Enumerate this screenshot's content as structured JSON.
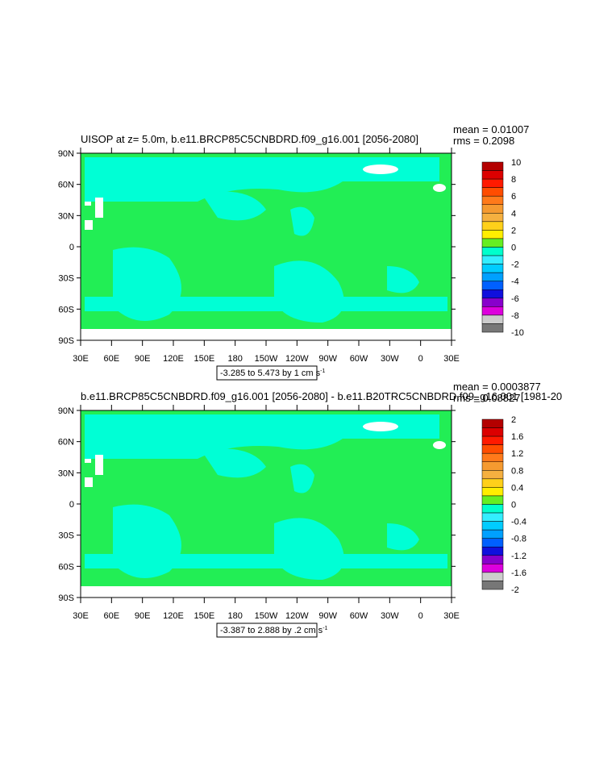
{
  "panels": [
    {
      "title": "UISOP at z=   5.0m, b.e11.BRCP85C5CNBDRD.f09_g16.001 [2056-2080]",
      "mean": "mean = 0.01007",
      "rms": "rms = 0.2098",
      "lat_labels": [
        "90N",
        "60N",
        "30N",
        "0",
        "30S",
        "60S",
        "90S"
      ],
      "lon_labels": [
        "30E",
        "60E",
        "90E",
        "120E",
        "150E",
        "180",
        "150W",
        "120W",
        "90W",
        "60W",
        "30W",
        "0",
        "30E"
      ],
      "info": "-3.285 to 5.473 by 1 cm s",
      "info_sup": "-1",
      "colorbar_labels": [
        "10",
        "8",
        "6",
        "4",
        "2",
        "0",
        "-2",
        "-4",
        "-6",
        "-8",
        "-10"
      ]
    },
    {
      "title": "b.e11.BRCP85C5CNBDRD.f09_g16.001 [2056-2080] - b.e11.B20TRC5CNBDRD.f09_g16.001 [1981-20",
      "mean": "mean = 0.0003877",
      "rms": "rms = 0.08827",
      "lat_labels": [
        "90N",
        "60N",
        "30N",
        "0",
        "30S",
        "60S",
        "90S"
      ],
      "lon_labels": [
        "30E",
        "60E",
        "90E",
        "120E",
        "150E",
        "180",
        "150W",
        "120W",
        "90W",
        "60W",
        "30W",
        "0",
        "30E"
      ],
      "info": "-3.387 to 2.888 by .2 cm s",
      "info_sup": "-1",
      "colorbar_labels": [
        "2",
        "1.6",
        "1.2",
        "0.8",
        "0.4",
        "0",
        "-0.4",
        "-0.8",
        "-1.2",
        "-1.6",
        "-2"
      ]
    }
  ]
}
